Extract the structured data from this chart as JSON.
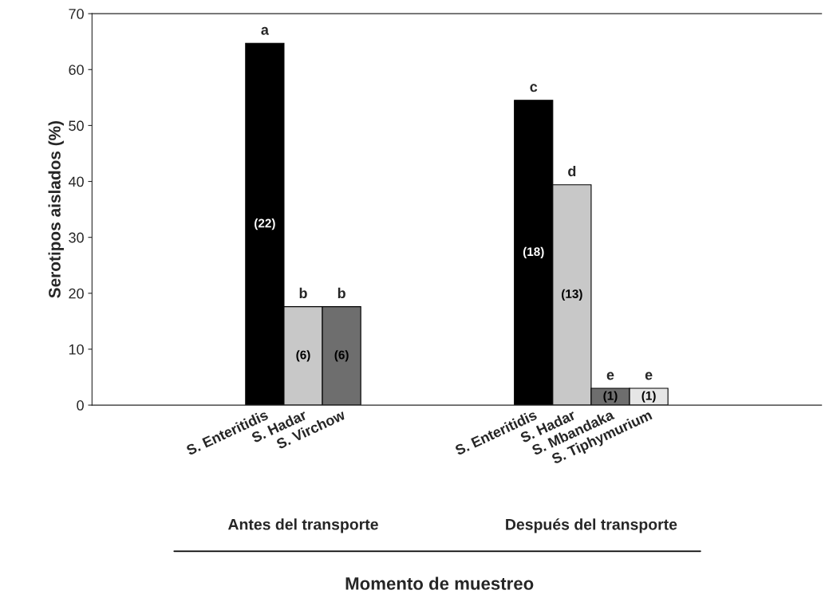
{
  "chart_data": {
    "type": "bar",
    "ylabel": "Serotipos aislados (%)",
    "categories": [
      null,
      null,
      null,
      null,
      "S. Enteritidis",
      "S. Hadar",
      "S. Virchow",
      null,
      null,
      null,
      null,
      "S. Enteritidis",
      "S. Hadar",
      "S. Mbandaka",
      "S. Tiphymurium",
      null,
      null,
      null,
      null
    ],
    "values": [
      null,
      null,
      null,
      null,
      64.7,
      17.6,
      17.6,
      null,
      null,
      null,
      null,
      54.5,
      39.4,
      3.0,
      3.0,
      null,
      null,
      null,
      null
    ],
    "colors": [
      null,
      null,
      null,
      null,
      "#000000",
      "#c8c8c8",
      "#6e6e6e",
      null,
      null,
      null,
      null,
      "#000000",
      "#c8c8c8",
      "#6e6e6e",
      "#e6e6e6",
      null,
      null,
      null,
      null
    ],
    "value_labels": [
      null,
      null,
      null,
      null,
      "a",
      "b",
      "b",
      null,
      null,
      null,
      null,
      "c",
      "d",
      "e",
      "e",
      null,
      null,
      null,
      null
    ],
    "annotations": [
      "(22)",
      "(6)",
      "(6)",
      "(18)",
      "(13)",
      "(1)",
      "(1)",
      "Antes del transporte",
      "Después del transporte",
      "Momento de muestreo"
    ],
    "ylim": [
      0,
      70
    ],
    "yticks": [
      0,
      10,
      20,
      30,
      40,
      50,
      60,
      70
    ],
    "grid": false,
    "legend": false
  }
}
